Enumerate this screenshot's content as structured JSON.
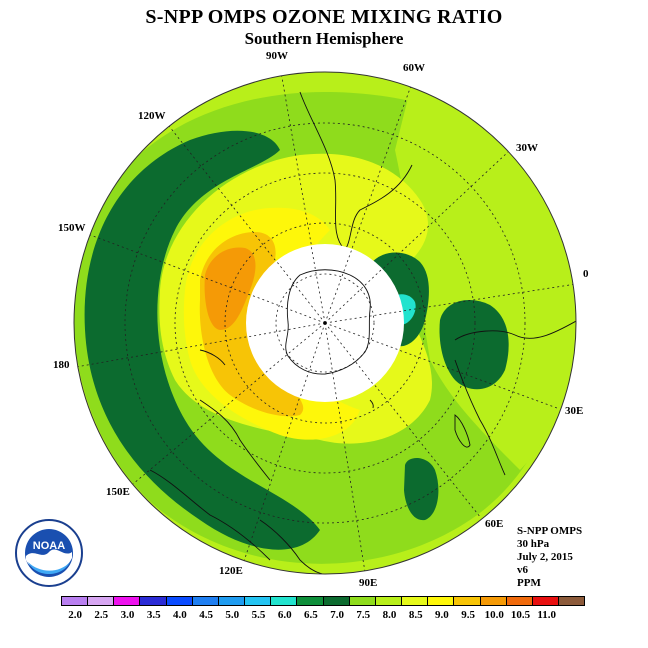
{
  "title": "S-NPP OMPS OZONE MIXING RATIO",
  "subtitle": "Southern Hemisphere",
  "longitude_labels": {
    "lon_90w": "90W",
    "lon_60w": "60W",
    "lon_120w": "120W",
    "lon_30w": "30W",
    "lon_150w": "150W",
    "lon_0": "0",
    "lon_180": "180",
    "lon_30e": "30E",
    "lon_150e": "150E",
    "lon_60e": "60E",
    "lon_120e": "120E",
    "lon_90e": "90E"
  },
  "info": {
    "instrument": "S-NPP OMPS",
    "level": "30 hPa",
    "date": "July 2, 2015",
    "version": "v6",
    "units": "PPM"
  },
  "logo": {
    "text": "NOAA"
  },
  "colorbar": {
    "ticks": [
      "2.0",
      "2.5",
      "3.0",
      "3.5",
      "4.0",
      "4.5",
      "5.0",
      "5.5",
      "6.0",
      "6.5",
      "7.0",
      "7.5",
      "8.0",
      "8.5",
      "9.0",
      "9.5",
      "10.0",
      "10.5",
      "11.0"
    ],
    "colors": [
      "#b97ff0",
      "#d7a6f2",
      "#ee11ee",
      "#2b2bd6",
      "#0a4bff",
      "#1f7ff2",
      "#1f9cf0",
      "#24c4f2",
      "#22e3ce",
      "#0e8f3a",
      "#0c6b2f",
      "#8fdc1c",
      "#b8ef1a",
      "#e6f91a",
      "#fef70a",
      "#f7c406",
      "#f59a06",
      "#f06a0c",
      "#e81010",
      "#8c5a3a"
    ]
  },
  "chart_data": {
    "type": "heatmap",
    "title": "S-NPP OMPS OZONE MIXING RATIO",
    "subtitle": "Southern Hemisphere",
    "units": "PPM",
    "range": [
      2.0,
      11.0
    ],
    "levels": [
      2.0,
      2.5,
      3.0,
      3.5,
      4.0,
      4.5,
      5.0,
      5.5,
      6.0,
      6.5,
      7.0,
      7.5,
      8.0,
      8.5,
      9.0,
      9.5,
      10.0,
      10.5,
      11.0
    ]
  }
}
